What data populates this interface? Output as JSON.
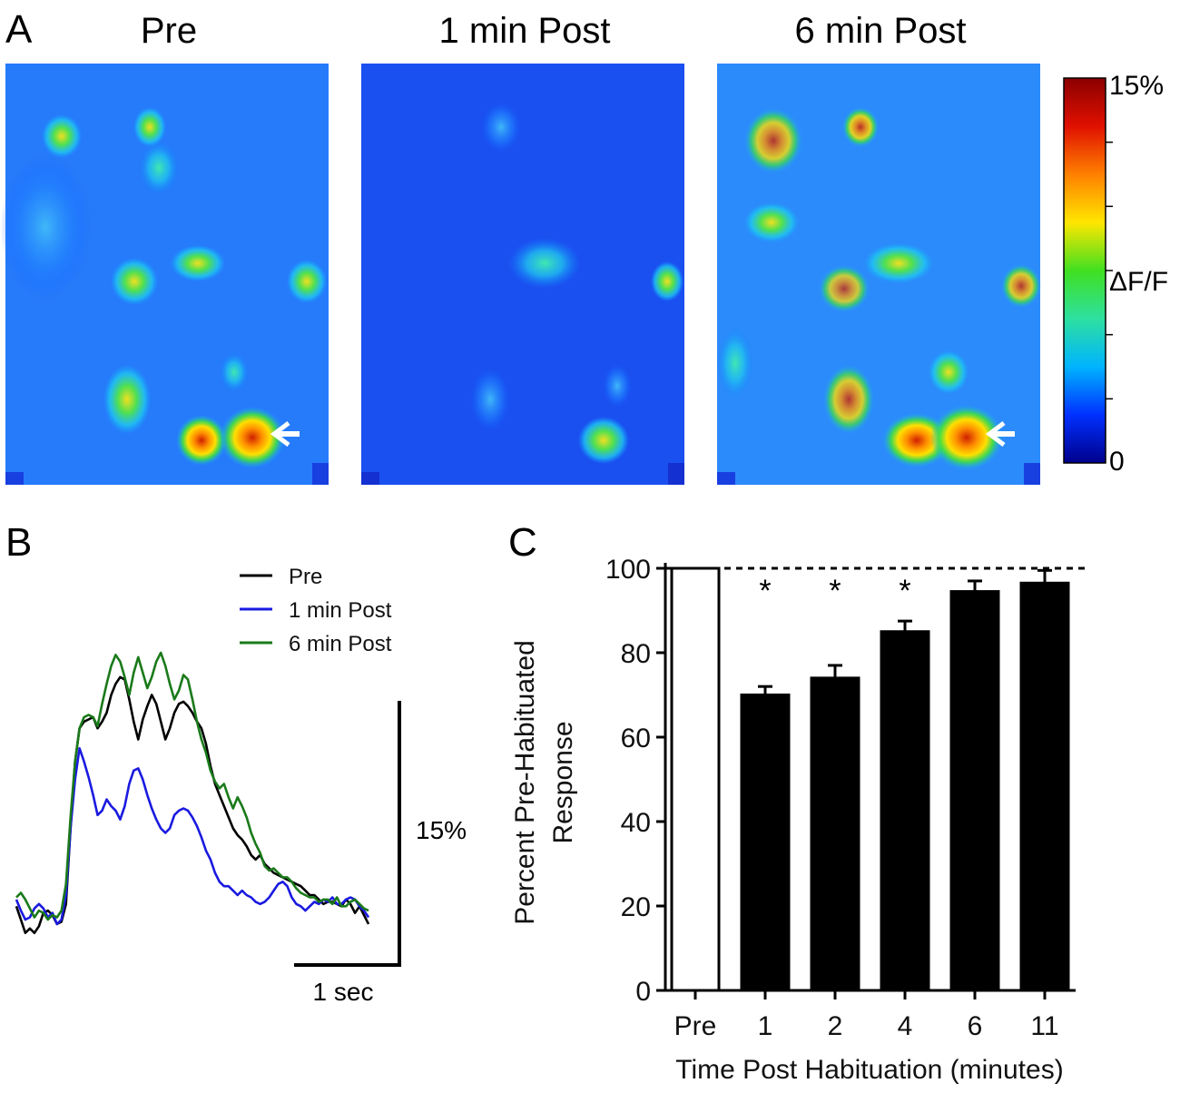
{
  "panel_a": {
    "letter": "A",
    "titles": [
      "Pre",
      "1 min Post",
      "6 min Post"
    ],
    "colorbar": {
      "max_label": "15%",
      "mid_label": "ΔF/F",
      "min_label": "0",
      "colors": [
        "#00008b",
        "#0030ff",
        "#00b4ff",
        "#2de0a0",
        "#40e020",
        "#ffe600",
        "#ff8000",
        "#e01000",
        "#8b0000"
      ]
    }
  },
  "chart_data": [
    {
      "type": "line",
      "panel": "B",
      "title": "",
      "xlabel": "",
      "ylabel": "",
      "legend": [
        "Pre",
        "1 min Post",
        "6 min Post"
      ],
      "legend_position": "top-right",
      "scale_bar": {
        "x_label": "1 sec",
        "y_label": "15%"
      },
      "x": [
        0,
        1,
        2,
        3,
        4,
        5,
        6,
        7,
        8,
        9,
        10,
        11,
        12,
        13,
        14,
        15,
        16,
        17,
        18,
        19,
        20,
        21,
        22,
        23,
        24,
        25,
        26,
        27,
        28,
        29,
        30,
        31,
        32,
        33,
        34,
        35,
        36,
        37,
        38,
        39,
        40,
        41,
        42,
        43,
        44,
        45,
        46,
        47,
        48,
        49,
        50,
        51,
        52,
        53,
        54,
        55,
        56,
        57,
        58,
        59,
        60,
        61,
        62,
        63,
        64,
        65,
        66,
        67,
        68,
        69,
        70,
        71,
        72,
        73,
        74,
        75,
        76,
        77,
        78
      ],
      "series": [
        {
          "name": "Pre",
          "color": "#000000",
          "values": [
            1.5,
            0.9,
            0.3,
            0.5,
            0.3,
            0.6,
            1.2,
            1.3,
            1.1,
            0.7,
            0.8,
            1.6,
            5.0,
            8.0,
            9.5,
            9.8,
            9.9,
            10.0,
            9.5,
            9.8,
            10.2,
            11.0,
            11.5,
            11.8,
            11.7,
            10.8,
            9.8,
            9.0,
            9.9,
            10.5,
            11.0,
            10.6,
            9.8,
            9.0,
            9.5,
            10.2,
            10.6,
            10.7,
            10.5,
            10.2,
            9.8,
            9.5,
            8.8,
            7.8,
            7.0,
            6.5,
            6.0,
            5.5,
            5.0,
            4.7,
            4.5,
            4.2,
            3.8,
            3.6,
            3.8,
            3.4,
            3.2,
            3.0,
            2.9,
            2.8,
            2.7,
            2.6,
            2.5,
            2.4,
            2.2,
            2.0,
            2.0,
            1.8,
            1.6,
            1.7,
            1.7,
            1.6,
            1.5,
            1.8,
            1.6,
            1.2,
            1.5,
            1.1,
            0.7
          ]
        },
        {
          "name": "1 min Post",
          "color": "#1a1ae0",
          "values": [
            1.8,
            1.3,
            0.9,
            1.0,
            1.4,
            1.6,
            1.4,
            1.0,
            1.2,
            0.7,
            0.9,
            2.0,
            5.0,
            7.2,
            8.6,
            8.0,
            7.3,
            6.5,
            5.6,
            5.8,
            6.3,
            6.0,
            5.8,
            5.4,
            6.0,
            7.0,
            7.6,
            7.7,
            7.2,
            6.5,
            5.9,
            5.4,
            5.0,
            4.8,
            5.0,
            5.6,
            5.8,
            5.9,
            5.8,
            5.5,
            5.1,
            4.6,
            4.0,
            3.6,
            3.0,
            2.6,
            2.4,
            2.4,
            2.2,
            2.0,
            2.2,
            2.0,
            1.9,
            1.7,
            1.6,
            1.7,
            1.9,
            2.2,
            2.5,
            2.6,
            2.4,
            1.9,
            1.6,
            1.5,
            1.3,
            1.5,
            1.7,
            1.6,
            1.8,
            1.7,
            1.9,
            1.6,
            1.6,
            1.8,
            1.9,
            1.8,
            1.5,
            1.3,
            1.0
          ]
        },
        {
          "name": "6 min Post",
          "color": "#1a7a1a",
          "values": [
            1.9,
            2.1,
            1.8,
            1.4,
            1.0,
            1.3,
            1.2,
            0.9,
            1.1,
            1.0,
            1.3,
            2.5,
            5.5,
            8.0,
            9.5,
            10.0,
            10.1,
            10.0,
            9.6,
            10.6,
            11.5,
            12.3,
            12.8,
            12.5,
            11.8,
            11.0,
            12.0,
            12.7,
            12.0,
            11.3,
            11.8,
            12.5,
            12.9,
            12.3,
            11.5,
            10.8,
            11.2,
            11.9,
            11.7,
            10.8,
            9.8,
            9.0,
            8.4,
            7.6,
            7.1,
            6.8,
            7.0,
            6.4,
            5.9,
            6.4,
            6.0,
            5.5,
            4.8,
            4.3,
            3.9,
            3.3,
            3.1,
            3.2,
            3.0,
            2.8,
            2.8,
            2.6,
            2.3,
            2.1,
            2.0,
            1.9,
            1.9,
            1.7,
            1.8,
            1.8,
            1.6,
            1.9,
            1.5,
            1.5,
            1.7,
            1.8,
            1.6,
            1.4,
            1.3
          ]
        }
      ]
    },
    {
      "type": "bar",
      "panel": "C",
      "title": "",
      "xlabel": "Time Post Habituation (minutes)",
      "ylabel": "Percent Pre-Habituated Response",
      "ylim": [
        0,
        100
      ],
      "yticks": [
        0,
        20,
        40,
        60,
        80,
        100
      ],
      "categories": [
        "Pre",
        "1",
        "2",
        "4",
        "6",
        "11"
      ],
      "values": [
        100,
        70,
        74,
        85,
        94.5,
        96.5
      ],
      "errors": [
        0,
        2,
        3,
        2.5,
        2.5,
        3
      ],
      "fills": [
        "#ffffff",
        "#000000",
        "#000000",
        "#000000",
        "#000000",
        "#000000"
      ],
      "significance": [
        "",
        "*",
        "*",
        "*",
        "",
        ""
      ],
      "reference_line": 100
    }
  ]
}
